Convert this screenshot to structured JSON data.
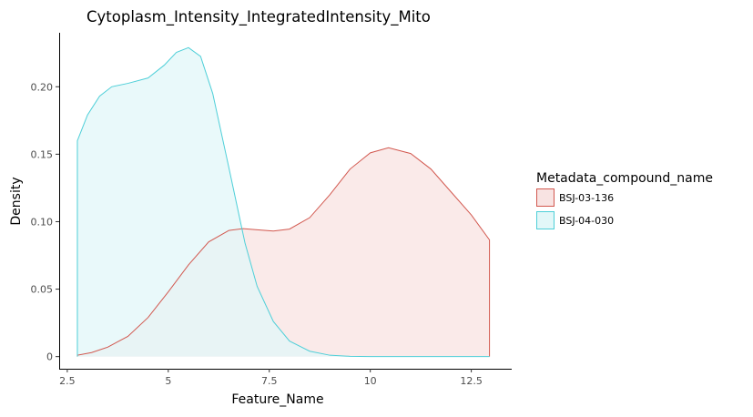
{
  "chart_data": {
    "type": "area",
    "title": "Cytoplasm_Intensity_IntegratedIntensity_Mito",
    "xlabel": "Feature_Name",
    "ylabel": "Density",
    "xlim": [
      2.3,
      13.5
    ],
    "ylim": [
      -0.009,
      0.24
    ],
    "x_ticks": [
      2.5,
      5,
      7.5,
      10,
      12.5
    ],
    "x_tick_labels": [
      "2.5",
      "5",
      "7.5",
      "10",
      "12.5"
    ],
    "y_ticks": [
      0,
      0.05,
      0.1,
      0.15,
      0.2
    ],
    "y_tick_labels": [
      "0",
      "0.05",
      "0.10",
      "0.15",
      "0.20"
    ],
    "grid": false,
    "legend": {
      "title": "Metadata_compound_name",
      "position": "right",
      "entries": [
        "BSJ-03-136",
        "BSJ-04-030"
      ]
    },
    "series": [
      {
        "name": "BSJ-03-136",
        "stroke": "#d2584f",
        "fill": "#f8e3e2",
        "x": [
          2.75,
          3.1,
          3.5,
          4.0,
          4.5,
          5.0,
          5.5,
          6.0,
          6.5,
          6.85,
          7.2,
          7.6,
          8.0,
          8.5,
          9.0,
          9.5,
          10.0,
          10.45,
          11.0,
          11.5,
          12.0,
          12.5,
          12.95,
          12.95
        ],
        "y": [
          0.001,
          0.003,
          0.007,
          0.015,
          0.029,
          0.048,
          0.068,
          0.085,
          0.0935,
          0.0948,
          0.094,
          0.0931,
          0.0945,
          0.103,
          0.12,
          0.139,
          0.151,
          0.1548,
          0.1505,
          0.139,
          0.122,
          0.105,
          0.0865,
          0
        ]
      },
      {
        "name": "BSJ-04-030",
        "stroke": "#4ecfd8",
        "fill": "#e2f7f8",
        "x": [
          2.75,
          2.75,
          3.0,
          3.3,
          3.6,
          4.0,
          4.5,
          4.9,
          5.2,
          5.5,
          5.8,
          6.1,
          6.5,
          6.9,
          7.2,
          7.6,
          8.0,
          8.5,
          9.0,
          9.5,
          10.0,
          12.95
        ],
        "y": [
          0,
          0.16,
          0.179,
          0.193,
          0.2,
          0.2025,
          0.2065,
          0.216,
          0.2255,
          0.229,
          0.2225,
          0.195,
          0.14,
          0.084,
          0.052,
          0.026,
          0.0115,
          0.004,
          0.001,
          0.0002,
          0,
          0
        ]
      }
    ]
  }
}
